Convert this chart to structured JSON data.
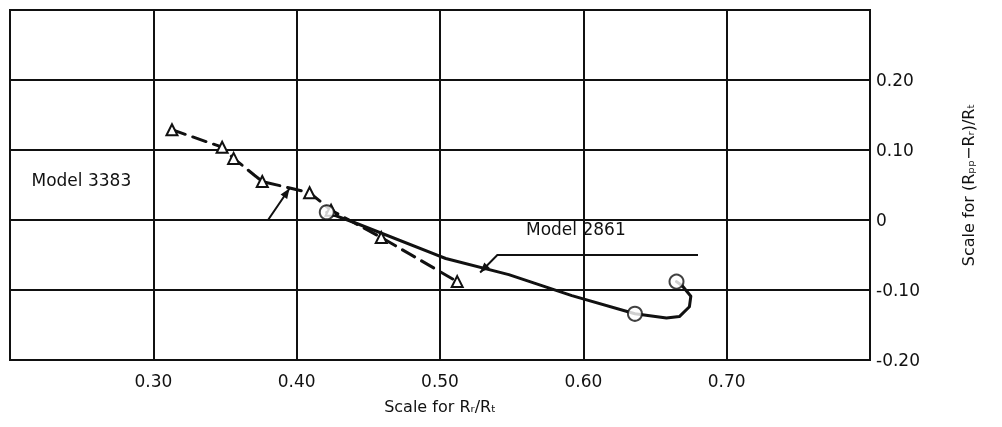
{
  "chart_data": {
    "type": "line",
    "xlabel": "Scale for Rᵣ/Rₜ",
    "ylabel": "Scale for (Rₚₚ−Rᵣ)/Rₜ",
    "xlim": [
      0.2,
      0.8
    ],
    "xticks": [
      {
        "value": 0.3,
        "label": "0.30"
      },
      {
        "value": 0.4,
        "label": "0.40"
      },
      {
        "value": 0.5,
        "label": "0.50"
      },
      {
        "value": 0.6,
        "label": "0.60"
      },
      {
        "value": 0.7,
        "label": "0.70"
      }
    ],
    "ylim": [
      -0.2,
      0.3
    ],
    "yticks": [
      {
        "value": -0.2,
        "label": "-0.20"
      },
      {
        "value": -0.1,
        "label": "-0.10"
      },
      0,
      {
        "value": 0.1,
        "label": "0.10"
      },
      {
        "value": 0.2,
        "label": "0.20"
      }
    ],
    "grid": true,
    "legend": false,
    "series": [
      {
        "name": "Model 3383",
        "color": "#111111",
        "line_style": "dashed",
        "marker": "triangle",
        "x": [
          0.313,
          0.348,
          0.356,
          0.376,
          0.409,
          0.424,
          0.459,
          0.512
        ],
        "values": [
          0.129,
          0.104,
          0.088,
          0.055,
          0.039,
          0.014,
          -0.025,
          -0.088
        ]
      },
      {
        "name": "Model 2861",
        "color": "#111111",
        "line_style": "solid",
        "marker": "none",
        "x": [
          0.421,
          0.442,
          0.504,
          0.548,
          0.592,
          0.636,
          0.658,
          0.667,
          0.674,
          0.675,
          0.669,
          0.665
        ],
        "values": [
          0.011,
          -0.005,
          -0.055,
          -0.078,
          -0.108,
          -0.134,
          -0.14,
          -0.138,
          -0.124,
          -0.109,
          -0.094,
          -0.088
        ]
      },
      {
        "type": "scatter",
        "color": "#111111",
        "marker": "circle",
        "x": [
          0.421,
          0.636,
          0.665
        ],
        "values": [
          0.011,
          -0.134,
          -0.088
        ]
      }
    ]
  }
}
